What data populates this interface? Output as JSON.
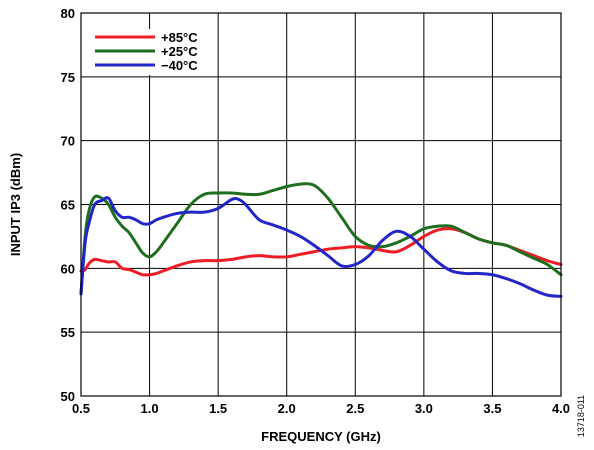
{
  "chart_data": {
    "type": "line",
    "xlabel": "FREQUENCY (GHz)",
    "ylabel": "INPUT IP3 (dBm)",
    "xlim": [
      0.5,
      4.0
    ],
    "ylim": [
      50,
      80
    ],
    "x_ticks": [
      0.5,
      1.0,
      1.5,
      2.0,
      2.5,
      3.0,
      3.5,
      4.0
    ],
    "x_tick_labels": [
      "0.5",
      "1.0",
      "1.5",
      "2.0",
      "2.5",
      "3.0",
      "3.5",
      "4.0"
    ],
    "y_ticks": [
      50,
      55,
      60,
      65,
      70,
      75,
      80
    ],
    "y_tick_labels": [
      "50",
      "55",
      "60",
      "65",
      "70",
      "75",
      "80"
    ],
    "grid": true,
    "legend_position": "top-left",
    "figure_id": "13718-011",
    "series": [
      {
        "name": "+85°C",
        "color": "#ee1c25",
        "x": [
          0.5,
          0.53,
          0.56,
          0.6,
          0.65,
          0.7,
          0.75,
          0.8,
          0.85,
          0.9,
          0.95,
          1.0,
          1.05,
          1.1,
          1.2,
          1.3,
          1.4,
          1.5,
          1.6,
          1.7,
          1.8,
          1.9,
          2.0,
          2.1,
          2.2,
          2.3,
          2.4,
          2.5,
          2.6,
          2.7,
          2.8,
          2.9,
          3.0,
          3.1,
          3.2,
          3.3,
          3.4,
          3.5,
          3.6,
          3.7,
          3.8,
          3.9,
          4.0
        ],
        "y": [
          59.8,
          59.9,
          60.4,
          60.7,
          60.6,
          60.5,
          60.5,
          60.0,
          59.9,
          59.7,
          59.5,
          59.5,
          59.6,
          59.8,
          60.2,
          60.5,
          60.6,
          60.6,
          60.7,
          60.9,
          61.0,
          60.9,
          60.9,
          61.1,
          61.3,
          61.5,
          61.6,
          61.7,
          61.6,
          61.4,
          61.3,
          61.8,
          62.5,
          63.0,
          63.1,
          62.8,
          62.3,
          62.0,
          61.8,
          61.4,
          61.0,
          60.6,
          60.3
        ]
      },
      {
        "name": "+25°C",
        "color": "#1e6e1e",
        "x": [
          0.5,
          0.53,
          0.56,
          0.6,
          0.65,
          0.7,
          0.75,
          0.8,
          0.85,
          0.9,
          0.95,
          1.0,
          1.05,
          1.1,
          1.2,
          1.3,
          1.4,
          1.5,
          1.6,
          1.7,
          1.8,
          1.9,
          2.0,
          2.1,
          2.2,
          2.3,
          2.4,
          2.5,
          2.6,
          2.7,
          2.8,
          2.9,
          3.0,
          3.1,
          3.2,
          3.3,
          3.4,
          3.5,
          3.6,
          3.7,
          3.8,
          3.9,
          4.0
        ],
        "y": [
          58.0,
          62.5,
          64.6,
          65.6,
          65.5,
          65.0,
          64.0,
          63.3,
          62.8,
          62.0,
          61.2,
          60.9,
          61.3,
          62.0,
          63.5,
          65.0,
          65.8,
          65.9,
          65.9,
          65.8,
          65.8,
          66.1,
          66.4,
          66.6,
          66.5,
          65.5,
          64.0,
          62.5,
          61.8,
          61.7,
          62.0,
          62.5,
          63.1,
          63.3,
          63.3,
          62.8,
          62.3,
          62.0,
          61.8,
          61.3,
          60.8,
          60.3,
          59.5
        ]
      },
      {
        "name": "−40°C",
        "color": "#2226c8",
        "x": [
          0.5,
          0.53,
          0.56,
          0.6,
          0.65,
          0.7,
          0.75,
          0.8,
          0.85,
          0.9,
          0.95,
          1.0,
          1.05,
          1.1,
          1.2,
          1.3,
          1.4,
          1.5,
          1.6,
          1.65,
          1.7,
          1.8,
          1.9,
          2.0,
          2.1,
          2.2,
          2.3,
          2.4,
          2.5,
          2.6,
          2.7,
          2.8,
          2.9,
          3.0,
          3.1,
          3.2,
          3.3,
          3.4,
          3.5,
          3.6,
          3.7,
          3.8,
          3.9,
          4.0
        ],
        "y": [
          58.0,
          62.0,
          63.6,
          65.0,
          65.3,
          65.5,
          64.5,
          64.0,
          64.0,
          63.8,
          63.5,
          63.5,
          63.8,
          64.0,
          64.3,
          64.4,
          64.4,
          64.7,
          65.4,
          65.4,
          65.0,
          63.8,
          63.4,
          63.0,
          62.5,
          61.8,
          61.0,
          60.2,
          60.3,
          61.0,
          62.2,
          62.9,
          62.5,
          61.5,
          60.5,
          59.8,
          59.6,
          59.6,
          59.5,
          59.2,
          58.8,
          58.3,
          57.9,
          57.8
        ]
      }
    ]
  }
}
